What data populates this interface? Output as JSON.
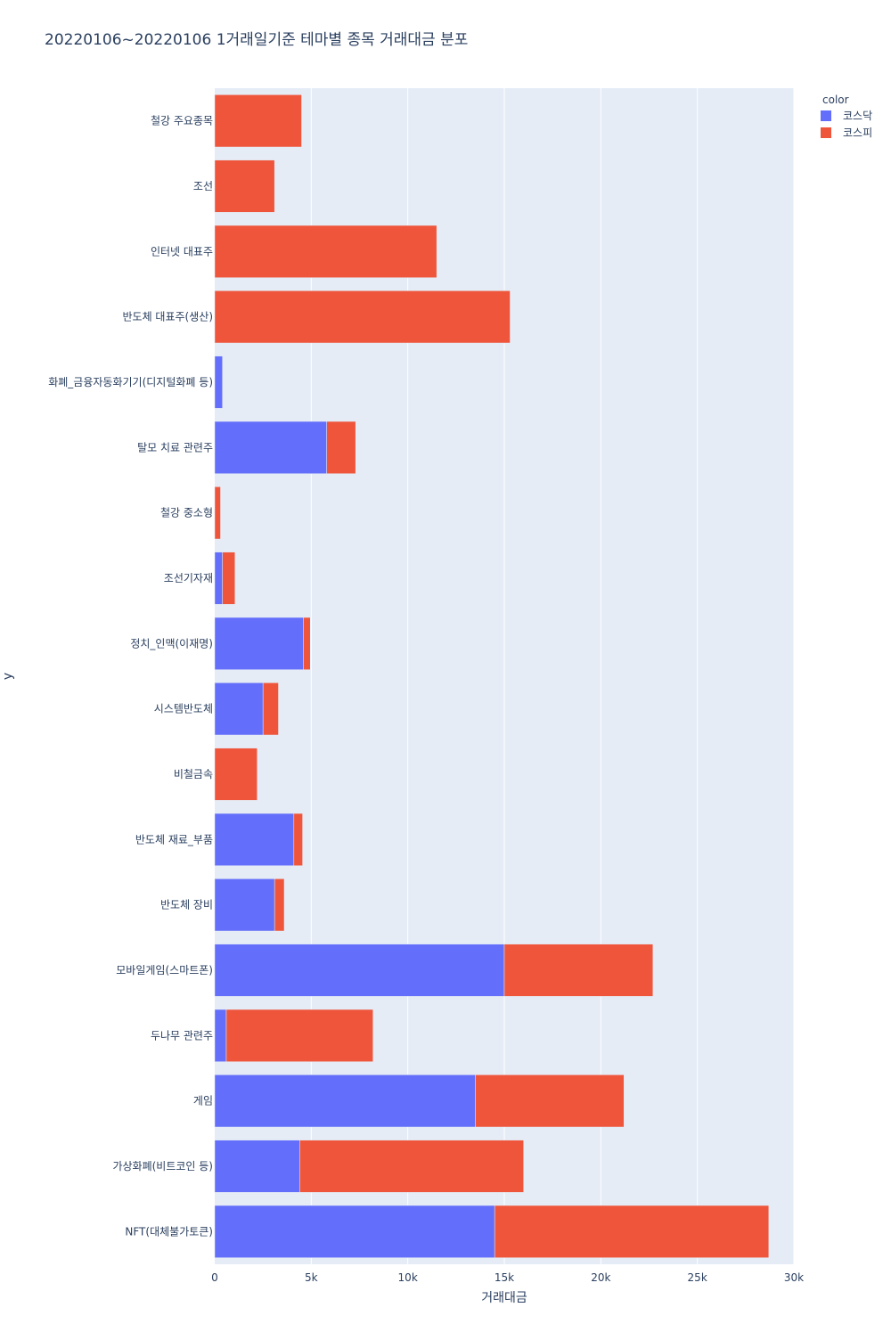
{
  "chart_data": {
    "type": "bar",
    "orientation": "horizontal",
    "barmode": "stack",
    "title": "20220106~20220106 1거래일기준 테마별 종목 거래대금 분포",
    "xlabel": "거래대금",
    "ylabel": "y",
    "xlim": [
      0,
      30000
    ],
    "x_ticks": [
      0,
      5000,
      10000,
      15000,
      20000,
      25000,
      30000
    ],
    "x_tick_labels": [
      "0",
      "5k",
      "10k",
      "15k",
      "20k",
      "25k",
      "30k"
    ],
    "grid": true,
    "legend_title": "color",
    "legend_position": "top-right",
    "categories": [
      "철강 주요종목",
      "조선",
      "인터넷 대표주",
      "반도체 대표주(생산)",
      "화폐_금융자동화기기(디지털화폐 등)",
      "탈모 치료 관련주",
      "철강 중소형",
      "조선기자재",
      "정치_인맥(이재명)",
      "시스템반도체",
      "비철금속",
      "반도체 재료_부품",
      "반도체 장비",
      "모바일게임(스마트폰)",
      "두나무 관련주",
      "게임",
      "가상화폐(비트코인 등)",
      "NFT(대체불가토큰)"
    ],
    "series": [
      {
        "name": "코스닥",
        "color": "#636efa",
        "values": [
          0,
          0,
          0,
          0,
          400,
          5800,
          0,
          400,
          4600,
          2500,
          0,
          4100,
          3100,
          15000,
          600,
          13500,
          4400,
          14500
        ]
      },
      {
        "name": "코스피",
        "color": "#ef553b",
        "values": [
          4500,
          3100,
          11500,
          15300,
          0,
          1500,
          300,
          650,
          350,
          800,
          2200,
          450,
          500,
          7700,
          7600,
          7700,
          11600,
          14200
        ]
      }
    ]
  }
}
